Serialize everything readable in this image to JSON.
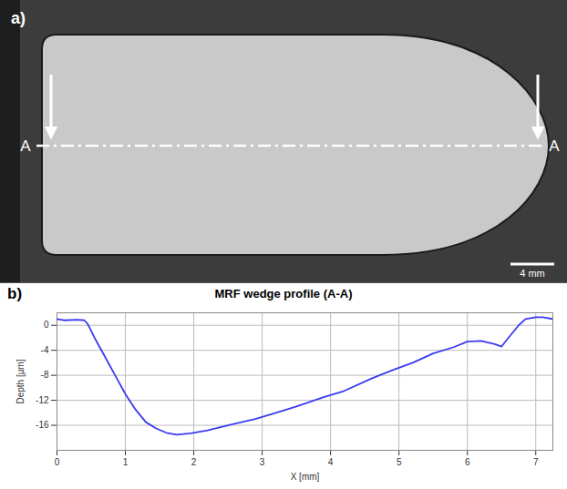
{
  "panel_a": {
    "label": "a)",
    "section_labels": [
      "A",
      "A"
    ],
    "scale_bar": "4 mm"
  },
  "panel_b": {
    "label": "b)"
  },
  "chart_data": {
    "type": "line",
    "title": "MRF wedge profile (A-A)",
    "xlabel": "X [mm]",
    "ylabel": "Depth [µm]",
    "x": [
      0,
      0.1,
      0.3,
      0.4,
      0.45,
      0.55,
      0.7,
      0.85,
      1.0,
      1.15,
      1.3,
      1.45,
      1.6,
      1.75,
      1.95,
      2.2,
      2.5,
      2.9,
      3.2,
      3.5,
      3.9,
      4.2,
      4.6,
      4.9,
      5.2,
      5.5,
      5.8,
      6.0,
      6.2,
      6.4,
      6.5,
      6.6,
      6.75,
      6.85,
      7.0,
      7.1,
      7.25
    ],
    "values": [
      1.0,
      0.8,
      0.9,
      0.8,
      0.2,
      -2,
      -5,
      -8,
      -11,
      -13.5,
      -15.5,
      -16.5,
      -17.2,
      -17.5,
      -17.3,
      -16.8,
      -16,
      -15,
      -14,
      -13,
      -11.5,
      -10.5,
      -8.5,
      -7.2,
      -6,
      -4.5,
      -3.5,
      -2.6,
      -2.5,
      -3,
      -3.4,
      -2,
      0,
      1,
      1.3,
      1.3,
      1.0
    ],
    "color": "#3b3bf0",
    "xlim": [
      0,
      7.25
    ],
    "ylim": [
      -20,
      2
    ],
    "xticks": [
      0,
      1,
      2,
      3,
      4,
      5,
      6,
      7
    ],
    "yticks": [
      0,
      -4,
      -8,
      -12,
      -16
    ],
    "grid": true
  }
}
